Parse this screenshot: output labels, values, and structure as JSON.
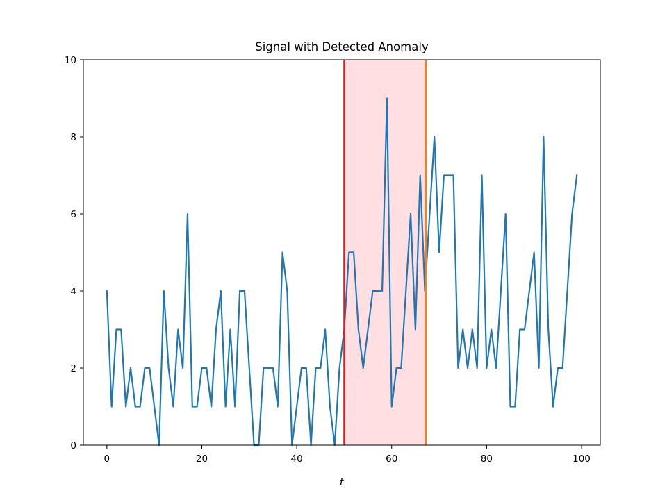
{
  "chart_data": {
    "type": "line",
    "title": "Signal with Detected Anomaly",
    "xlabel": "t",
    "ylabel": "",
    "xlim": [
      -4.95,
      103.95
    ],
    "ylim": [
      0,
      10
    ],
    "xticks": [
      0,
      20,
      40,
      60,
      80,
      100
    ],
    "yticks": [
      0,
      2,
      4,
      6,
      8,
      10
    ],
    "grid": false,
    "series": [
      {
        "color": "#1f77b4",
        "x": [
          0,
          1,
          2,
          3,
          4,
          5,
          6,
          7,
          8,
          9,
          10,
          11,
          12,
          13,
          14,
          15,
          16,
          17,
          18,
          19,
          20,
          21,
          22,
          23,
          24,
          25,
          26,
          27,
          28,
          29,
          30,
          31,
          32,
          33,
          34,
          35,
          36,
          37,
          38,
          39,
          40,
          41,
          42,
          43,
          44,
          45,
          46,
          47,
          48,
          49,
          50,
          51,
          52,
          53,
          54,
          55,
          56,
          57,
          58,
          59,
          60,
          61,
          62,
          63,
          64,
          65,
          66,
          67,
          68,
          69,
          70,
          71,
          72,
          73,
          74,
          75,
          76,
          77,
          78,
          79,
          80,
          81,
          82,
          83,
          84,
          85,
          86,
          87,
          88,
          89,
          90,
          91,
          92,
          93,
          94,
          95,
          96,
          97,
          98,
          99
        ],
        "values": [
          4,
          1,
          3,
          3,
          1,
          2,
          1,
          1,
          2,
          2,
          1,
          0,
          4,
          2,
          1,
          3,
          2,
          6,
          1,
          1,
          2,
          2,
          1,
          3,
          4,
          1,
          3,
          1,
          4,
          4,
          2,
          0,
          0,
          2,
          2,
          2,
          1,
          5,
          4,
          0,
          1,
          2,
          2,
          0,
          2,
          2,
          3,
          1,
          0,
          2,
          3,
          5,
          5,
          3,
          2,
          3,
          4,
          4,
          4,
          9,
          1,
          2,
          2,
          4,
          6,
          3,
          7,
          4,
          6,
          8,
          5,
          7,
          7,
          7,
          2,
          3,
          2,
          3,
          2,
          7,
          2,
          3,
          2,
          4,
          6,
          1,
          1,
          3,
          3,
          4,
          5,
          2,
          8,
          3,
          1,
          2,
          2,
          4,
          6,
          7
        ]
      }
    ],
    "annotations": {
      "anomaly_start": 50,
      "anomaly_end": 67.2,
      "span_color": "#ffdfe1",
      "start_line_color": "#e8191a",
      "end_line_color": "#ff7f0e"
    }
  }
}
